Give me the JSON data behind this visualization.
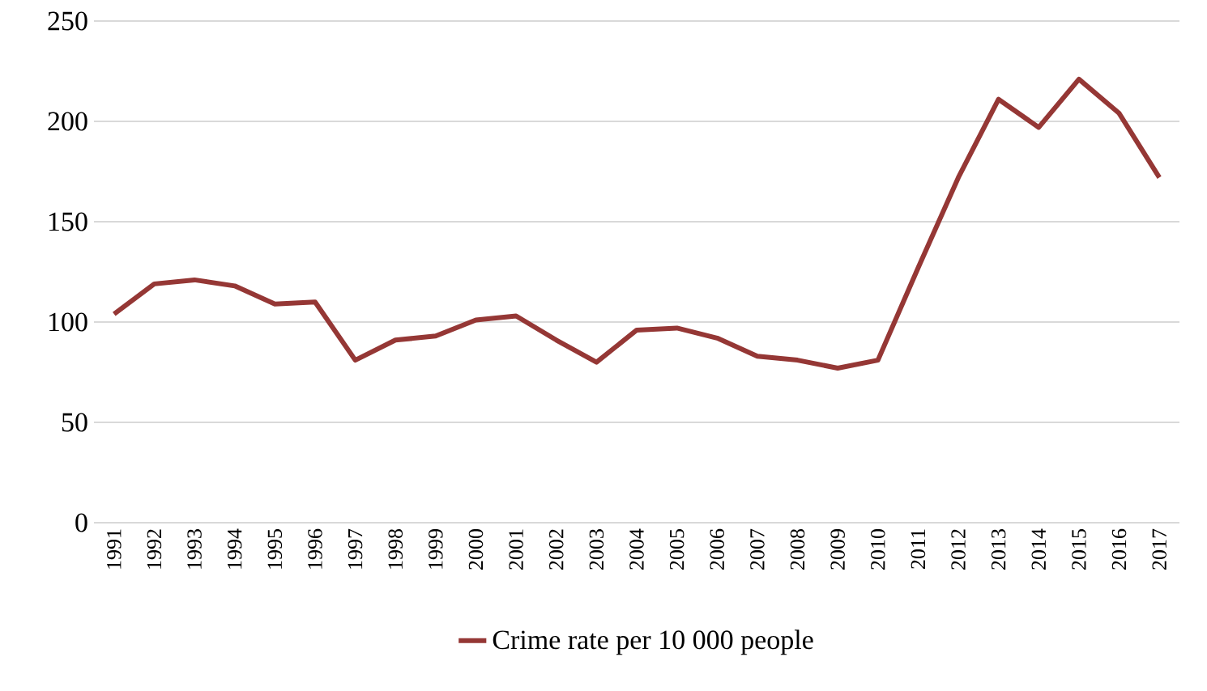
{
  "chart_data": {
    "type": "line",
    "categories": [
      "1991",
      "1992",
      "1993",
      "1994",
      "1995",
      "1996",
      "1997",
      "1998",
      "1999",
      "2000",
      "2001",
      "2002",
      "2003",
      "2004",
      "2005",
      "2006",
      "2007",
      "2008",
      "2009",
      "2010",
      "2011",
      "2012",
      "2013",
      "2014",
      "2015",
      "2016",
      "2017"
    ],
    "series": [
      {
        "name": "Crime rate per 10 000 people",
        "color": "#953735",
        "values": [
          104,
          119,
          121,
          118,
          109,
          110,
          81,
          91,
          93,
          101,
          103,
          91,
          80,
          96,
          97,
          92,
          83,
          81,
          77,
          81,
          127,
          172,
          211,
          197,
          221,
          204,
          172
        ]
      }
    ],
    "ylim": [
      0,
      250
    ],
    "yticks": [
      0,
      50,
      100,
      150,
      200,
      250
    ],
    "grid": "y",
    "legend": "bottom",
    "marker": "none",
    "line_style": "solid"
  }
}
